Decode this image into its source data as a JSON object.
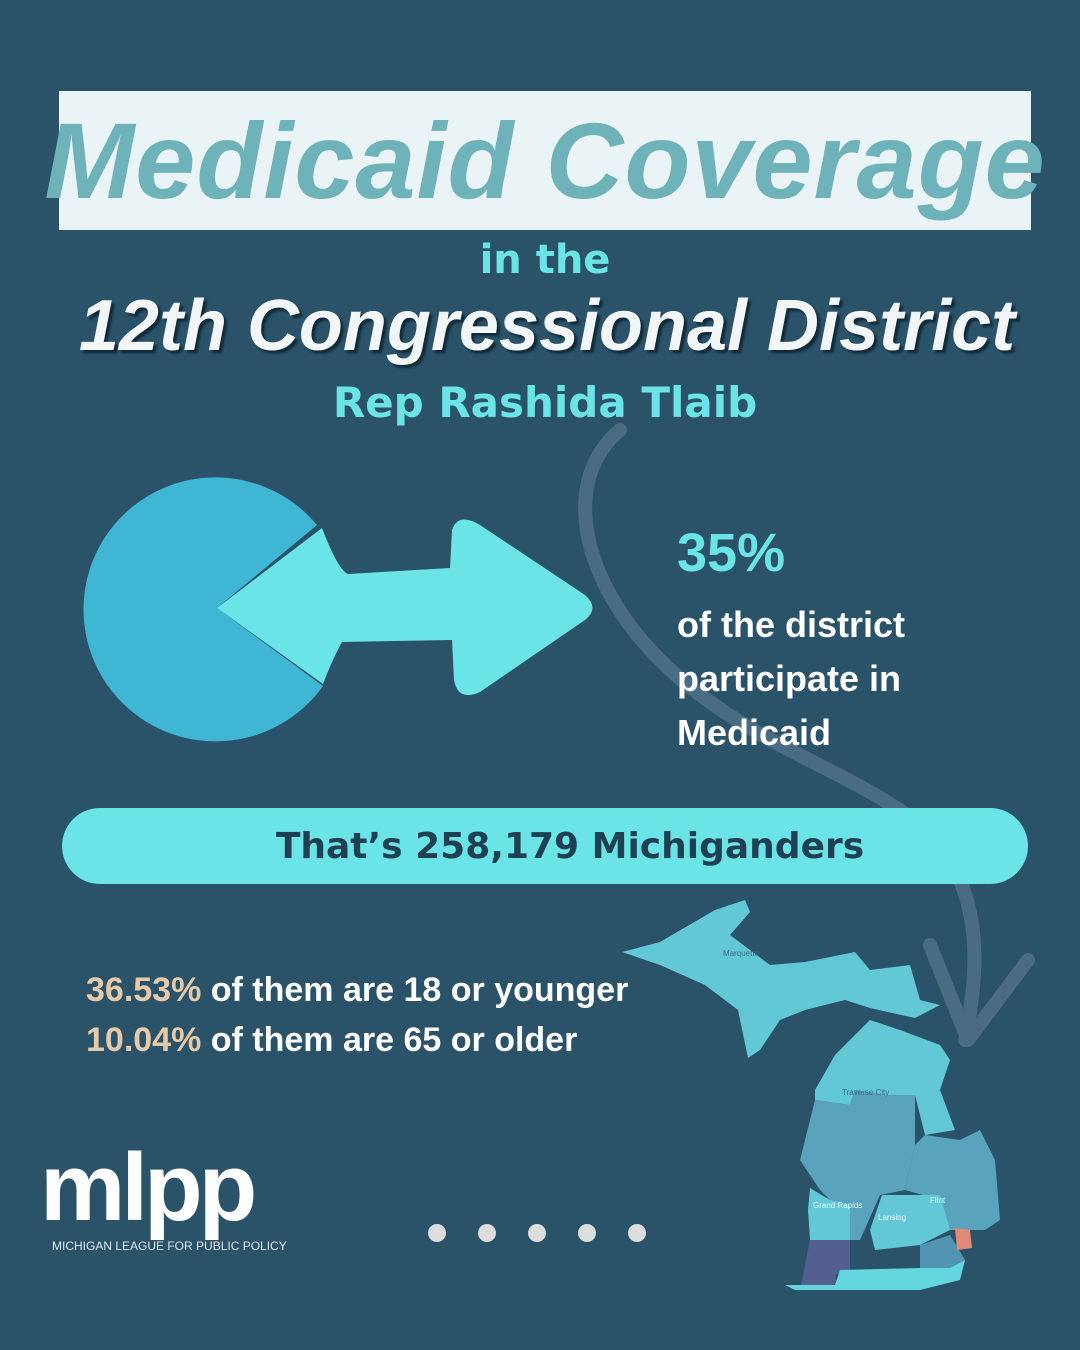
{
  "title": "Medicaid Coverage",
  "subtitle_connector": "in the",
  "district": "12th Congressional District",
  "representative": "Rep Rashida Tlaib",
  "participation": {
    "percent_label": "35%",
    "percent": 35,
    "description": "of the district participate in Medicaid"
  },
  "total_banner": "That’s 258,179 Michiganders",
  "stats": [
    {
      "value": "36.53%",
      "text": " of them are 18 or younger"
    },
    {
      "value": "10.04%",
      "text": " of them are 65 or older"
    }
  ],
  "map_labels": [
    "Marquette",
    "Traverse City",
    "Grand Rapids",
    "Lansing",
    "Flint"
  ],
  "logo": {
    "wordmark": "mlpp",
    "tagline": "MICHIGAN LEAGUE FOR PUBLIC POLICY"
  },
  "pagination": {
    "total": 5
  },
  "colors": {
    "background": "#2a5269",
    "accent": "#6be4e8",
    "pie": "#3eb6d4",
    "highlight": "#e6c9a8"
  }
}
